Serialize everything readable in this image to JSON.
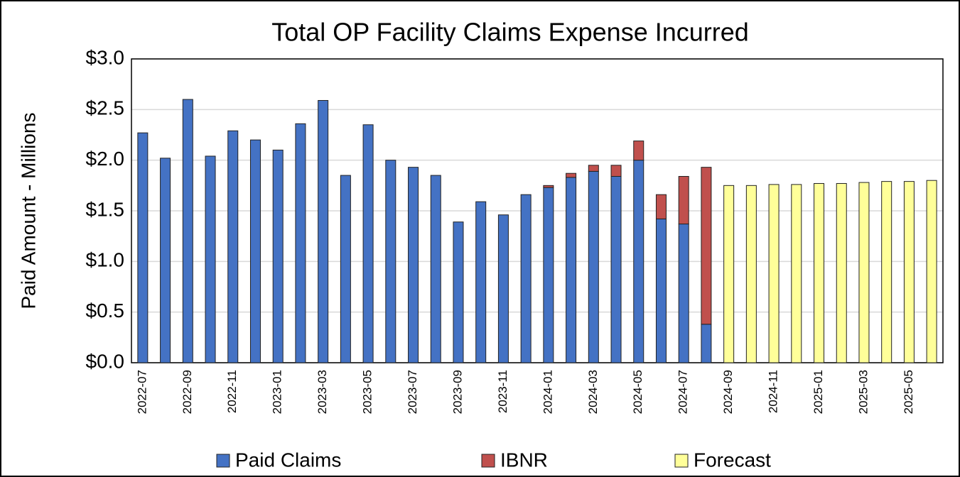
{
  "chart_data": {
    "type": "bar",
    "stacked": true,
    "title": "Total OP Facility Claims Expense Incurred",
    "y_label": "Paid Amount - Millions",
    "categories": [
      "2022-07",
      null,
      "2022-09",
      null,
      "2022-11",
      null,
      "2023-01",
      null,
      "2023-03",
      null,
      "2023-05",
      null,
      "2023-07",
      null,
      "2023-09",
      null,
      "2023-11",
      null,
      "2024-01",
      null,
      "2024-03",
      null,
      "2024-05",
      null,
      "2024-07",
      null,
      "2024-09",
      null,
      "2024-11",
      null,
      "2025-01",
      null,
      "2025-03",
      null,
      "2025-05",
      null
    ],
    "series": [
      {
        "name": "Paid Claims",
        "color": "#4472c4",
        "values": [
          2.27,
          2.02,
          2.6,
          2.04,
          2.29,
          2.2,
          2.1,
          2.36,
          2.59,
          1.85,
          2.35,
          2.0,
          1.93,
          1.85,
          1.39,
          1.59,
          1.46,
          1.66,
          1.73,
          1.83,
          1.89,
          1.84,
          2.0,
          1.42,
          1.37,
          0.38,
          null,
          null,
          null,
          null,
          null,
          null,
          null,
          null,
          null,
          null
        ]
      },
      {
        "name": "IBNR",
        "color": "#c0504d",
        "values": [
          null,
          null,
          null,
          null,
          null,
          null,
          null,
          null,
          null,
          null,
          null,
          null,
          null,
          null,
          null,
          null,
          null,
          null,
          0.02,
          0.04,
          0.06,
          0.11,
          0.19,
          0.24,
          0.47,
          1.55,
          null,
          null,
          null,
          null,
          null,
          null,
          null,
          null,
          null,
          null
        ]
      },
      {
        "name": "Forecast",
        "color": "#ffff99",
        "values": [
          null,
          null,
          null,
          null,
          null,
          null,
          null,
          null,
          null,
          null,
          null,
          null,
          null,
          null,
          null,
          null,
          null,
          null,
          null,
          null,
          null,
          null,
          null,
          null,
          null,
          null,
          1.75,
          1.75,
          1.76,
          1.76,
          1.77,
          1.77,
          1.78,
          1.79,
          1.79,
          1.8
        ]
      }
    ],
    "ylim": [
      0,
      3
    ],
    "yticks": [
      {
        "value": 0,
        "label": "$0.0"
      },
      {
        "value": 0.5,
        "label": "$0.5"
      },
      {
        "value": 1,
        "label": "$1.0"
      },
      {
        "value": 1.5,
        "label": "$1.5"
      },
      {
        "value": 2,
        "label": "$2.0"
      },
      {
        "value": 2.5,
        "label": "$2.5"
      },
      {
        "value": 3,
        "label": "$3.0"
      }
    ],
    "grid": true,
    "legend": "bottom"
  }
}
